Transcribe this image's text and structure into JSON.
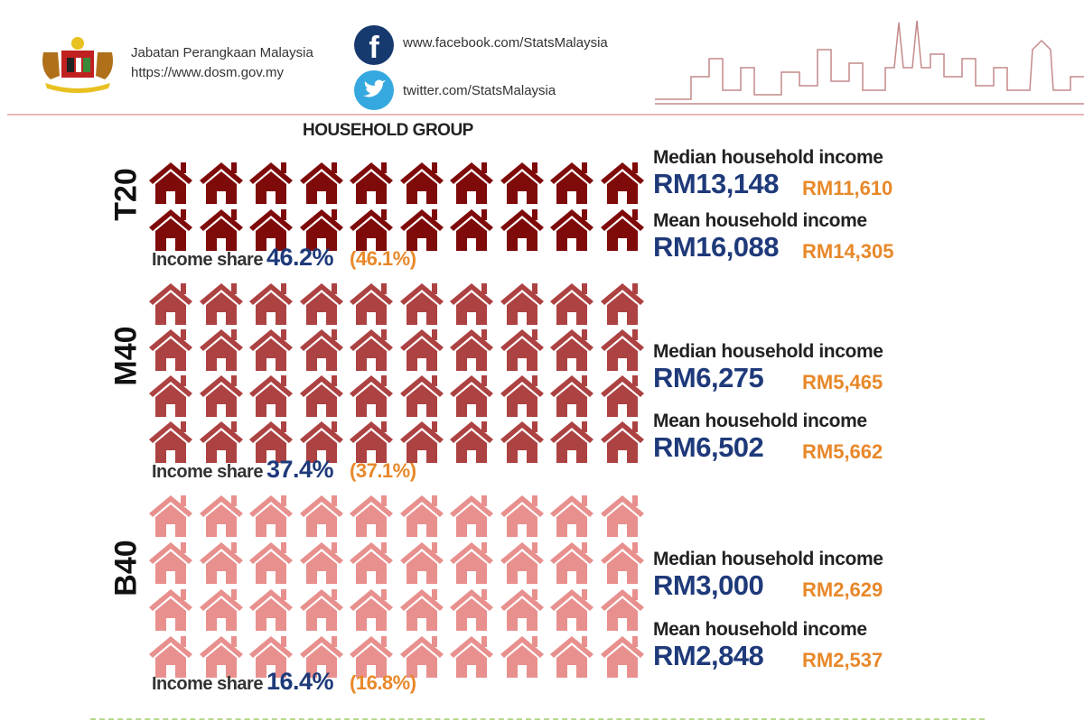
{
  "header": {
    "org_name": "Jabatan Perangkaan Malaysia",
    "org_url": "https://www.dosm.gov.my",
    "facebook": "www.facebook.com/StatsMalaysia",
    "twitter": "twitter.com/StatsMalaysia"
  },
  "title": "HOUSEHOLD GROUP",
  "groups": [
    {
      "label": "T20",
      "rows": 2,
      "cols": 10,
      "color": "#7e0a0a",
      "share_label": "Income share",
      "share": "46.2%",
      "share_prev": "(46.1%)",
      "median_label": "Median household income",
      "median": "RM13,148",
      "median_prev": "RM11,610",
      "mean_label": "Mean household income",
      "mean": "RM16,088",
      "mean_prev": "RM14,305"
    },
    {
      "label": "M40",
      "rows": 4,
      "cols": 10,
      "color": "#ad4242",
      "share_label": "Income share",
      "share": "37.4%",
      "share_prev": "(37.1%)",
      "median_label": "Median household income",
      "median": "RM6,275",
      "median_prev": "RM5,465",
      "mean_label": "Mean household income",
      "mean": "RM6,502",
      "mean_prev": "RM5,662"
    },
    {
      "label": "B40",
      "rows": 4,
      "cols": 10,
      "color": "#e8908e",
      "share_label": "Income share",
      "share": "16.4%",
      "share_prev": "(16.8%)",
      "median_label": "Median household income",
      "median": "RM3,000",
      "median_prev": "RM2,629",
      "mean_label": "Mean household income",
      "mean": "RM2,848",
      "mean_prev": "RM2,537"
    }
  ]
}
